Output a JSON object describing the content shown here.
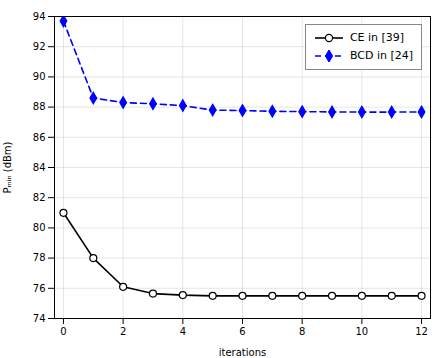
{
  "chart_data": {
    "type": "line",
    "x": [
      0,
      1,
      2,
      3,
      4,
      5,
      6,
      7,
      8,
      9,
      10,
      11,
      12
    ],
    "series": [
      {
        "name": "CE in [39]",
        "color": "#000000",
        "marker": "circle",
        "line_style": "solid",
        "values": [
          81.0,
          78.0,
          76.1,
          75.65,
          75.55,
          75.5,
          75.5,
          75.5,
          75.5,
          75.5,
          75.5,
          75.5,
          75.5
        ]
      },
      {
        "name": "BCD in [24]",
        "color": "#0000ff",
        "marker": "diamond",
        "line_style": "dashed",
        "values": [
          93.7,
          88.6,
          88.3,
          88.22,
          88.1,
          87.8,
          87.77,
          87.72,
          87.7,
          87.68,
          87.67,
          87.67,
          87.68
        ]
      }
    ],
    "xlabel": "iterations",
    "ylabel": "Pₘᵢₙ (dBm)",
    "xlim": [
      -0.3,
      12.3
    ],
    "ylim": [
      74,
      94
    ],
    "xticks": [
      0,
      2,
      4,
      6,
      8,
      10,
      12
    ],
    "yticks": [
      74,
      76,
      78,
      80,
      82,
      84,
      86,
      88,
      90,
      92,
      94
    ],
    "grid": true,
    "legend": "upper right"
  }
}
